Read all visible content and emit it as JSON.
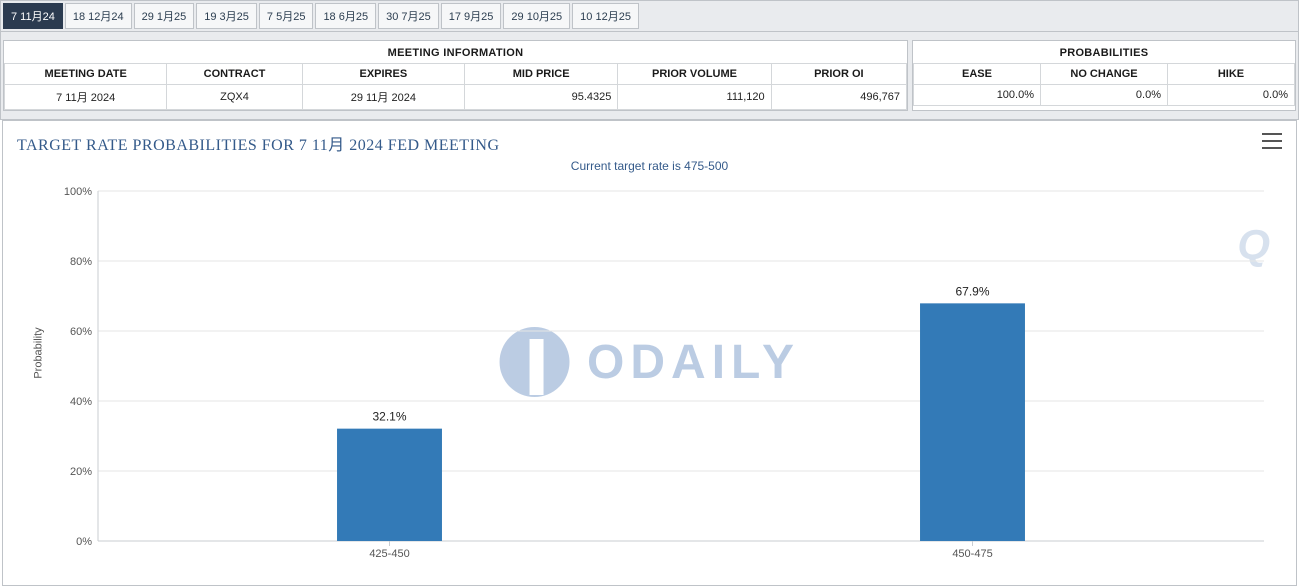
{
  "tabs": {
    "items": [
      "7 11月24",
      "18 12月24",
      "29 1月25",
      "19 3月25",
      "7 5月25",
      "18 6月25",
      "30 7月25",
      "17 9月25",
      "29 10月25",
      "10 12月25"
    ],
    "active_index": 0
  },
  "meeting_info": {
    "title": "MEETING INFORMATION",
    "headers": [
      "MEETING DATE",
      "CONTRACT",
      "EXPIRES",
      "MID PRICE",
      "PRIOR VOLUME",
      "PRIOR OI"
    ],
    "row": {
      "meeting_date": "7 11月 2024",
      "contract": "ZQX4",
      "expires": "29 11月 2024",
      "mid_price": "95.4325",
      "prior_volume": "111,120",
      "prior_oi": "496,767"
    }
  },
  "probabilities": {
    "title": "PROBABILITIES",
    "headers": [
      "EASE",
      "NO CHANGE",
      "HIKE"
    ],
    "row": {
      "ease": "100.0%",
      "no_change": "0.0%",
      "hike": "0.0%"
    }
  },
  "chart": {
    "title": "TARGET RATE PROBABILITIES FOR 7 11月 2024 FED MEETING",
    "subtitle": "Current target rate is 475-500",
    "y_axis_label": "Probability",
    "type": "bar",
    "categories": [
      "425-450",
      "450-475"
    ],
    "values": [
      32.1,
      67.9
    ],
    "value_labels": [
      "32.1%",
      "67.9%"
    ],
    "bar_color": "#337ab7",
    "ylim": [
      0,
      100
    ],
    "ytick_step": 20,
    "ytick_labels": [
      "0%",
      "20%",
      "40%",
      "60%",
      "80%",
      "100%"
    ],
    "grid_color": "#e6e6e6",
    "axis_color": "#c9cdd2",
    "background_color": "#ffffff",
    "bar_width_ratio": 0.18,
    "title_fontsize": 16,
    "title_color": "#345a8a",
    "subtitle_fontsize": 12,
    "label_fontsize": 11,
    "watermark_text": "ODAILY",
    "watermark_color": "#6a8fc2"
  }
}
